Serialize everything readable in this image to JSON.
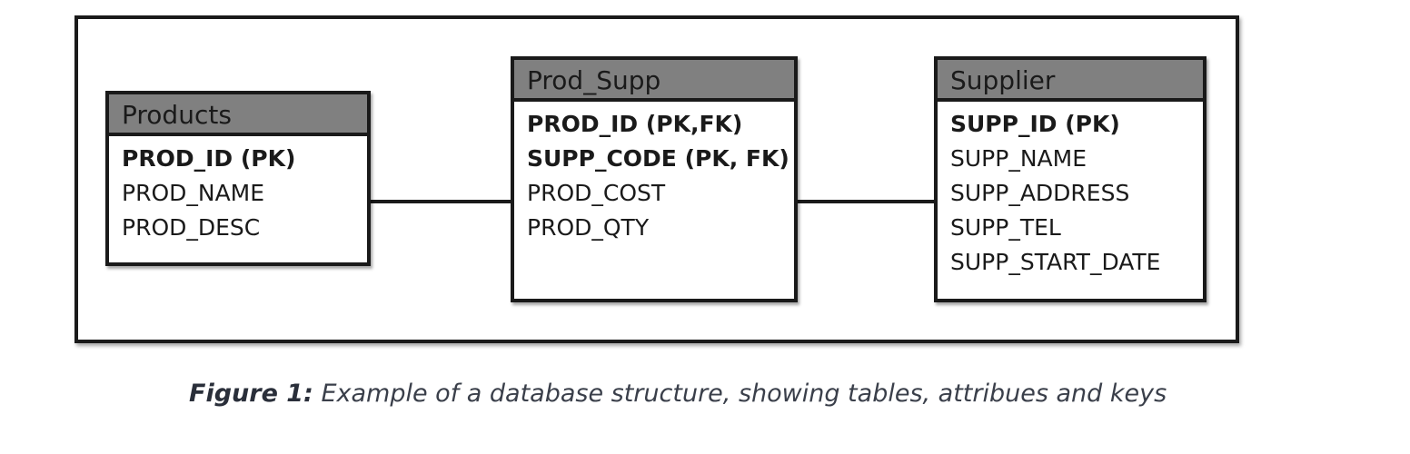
{
  "diagram": {
    "entities": [
      {
        "name": "Products",
        "attributes": [
          {
            "label": "PROD_ID (PK)",
            "key": true
          },
          {
            "label": "PROD_NAME",
            "key": false
          },
          {
            "label": "PROD_DESC",
            "key": false
          }
        ]
      },
      {
        "name": "Prod_Supp",
        "attributes": [
          {
            "label": "PROD_ID (PK,FK)",
            "key": true
          },
          {
            "label": "SUPP_CODE (PK, FK)",
            "key": true
          },
          {
            "label": "PROD_COST",
            "key": false
          },
          {
            "label": "PROD_QTY",
            "key": false
          }
        ]
      },
      {
        "name": "Supplier",
        "attributes": [
          {
            "label": "SUPP_ID (PK)",
            "key": true
          },
          {
            "label": "SUPP_NAME",
            "key": false
          },
          {
            "label": "SUPP_ADDRESS",
            "key": false
          },
          {
            "label": "SUPP_TEL",
            "key": false
          },
          {
            "label": "SUPP_START_DATE",
            "key": false
          }
        ]
      }
    ],
    "relationships": [
      {
        "from": "Products",
        "to": "Prod_Supp"
      },
      {
        "from": "Prod_Supp",
        "to": "Supplier"
      }
    ],
    "colors": {
      "header_fill": "#808080",
      "border": "#1a1a1a",
      "caption_text": "#3a3f4a"
    }
  },
  "caption": {
    "label": "Figure 1:",
    "text": " Example of a database structure, showing tables, attribues and keys"
  }
}
